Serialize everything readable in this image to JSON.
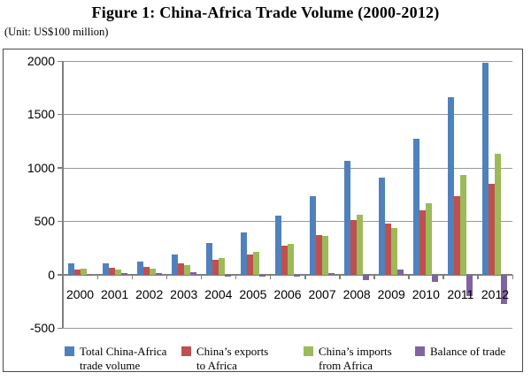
{
  "figure": {
    "title": "Figure 1: China-Africa Trade Volume (2000-2012)",
    "unit_note": "(Unit: US$100 million)"
  },
  "chart_data": {
    "type": "bar",
    "title": "Figure 1: China-Africa Trade Volume (2000-2012)",
    "unit": "US$100 million",
    "categories": [
      "2000",
      "2001",
      "2002",
      "2003",
      "2004",
      "2005",
      "2006",
      "2007",
      "2008",
      "2009",
      "2010",
      "2011",
      "2012"
    ],
    "series": [
      {
        "key": "total",
        "name": "Total China-Africa\ntrade volume",
        "color": "#4F81BD",
        "values": [
          106,
          108,
          124,
          185,
          296,
          398,
          555,
          736,
          1068,
          910,
          1269,
          1663,
          1984
        ]
      },
      {
        "key": "exports",
        "name": "China’s exports\nto Africa",
        "color": "#C0504D",
        "values": [
          50,
          60,
          70,
          102,
          138,
          187,
          267,
          373,
          508,
          478,
          600,
          732,
          853
        ]
      },
      {
        "key": "imports",
        "name": "China’s imports\nfrom Africa",
        "color": "#9BBB59",
        "values": [
          56,
          48,
          54,
          84,
          158,
          211,
          288,
          363,
          560,
          432,
          670,
          932,
          1131
        ]
      },
      {
        "key": "balance",
        "name": "Balance of trade",
        "color": "#8064A2",
        "values": [
          -6,
          12,
          16,
          18,
          -20,
          -24,
          -21,
          10,
          -52,
          46,
          -70,
          -200,
          -278
        ]
      }
    ],
    "yticks": [
      2000,
      1500,
      1000,
      500,
      0,
      -500
    ],
    "ylim": [
      -500,
      2000
    ],
    "grid": true,
    "legend_position": "bottom"
  },
  "style_colors": {
    "gridline": "#999999",
    "axis": "#7f7f7f",
    "chart_border": "#4a4a4a",
    "text": "#000000"
  }
}
